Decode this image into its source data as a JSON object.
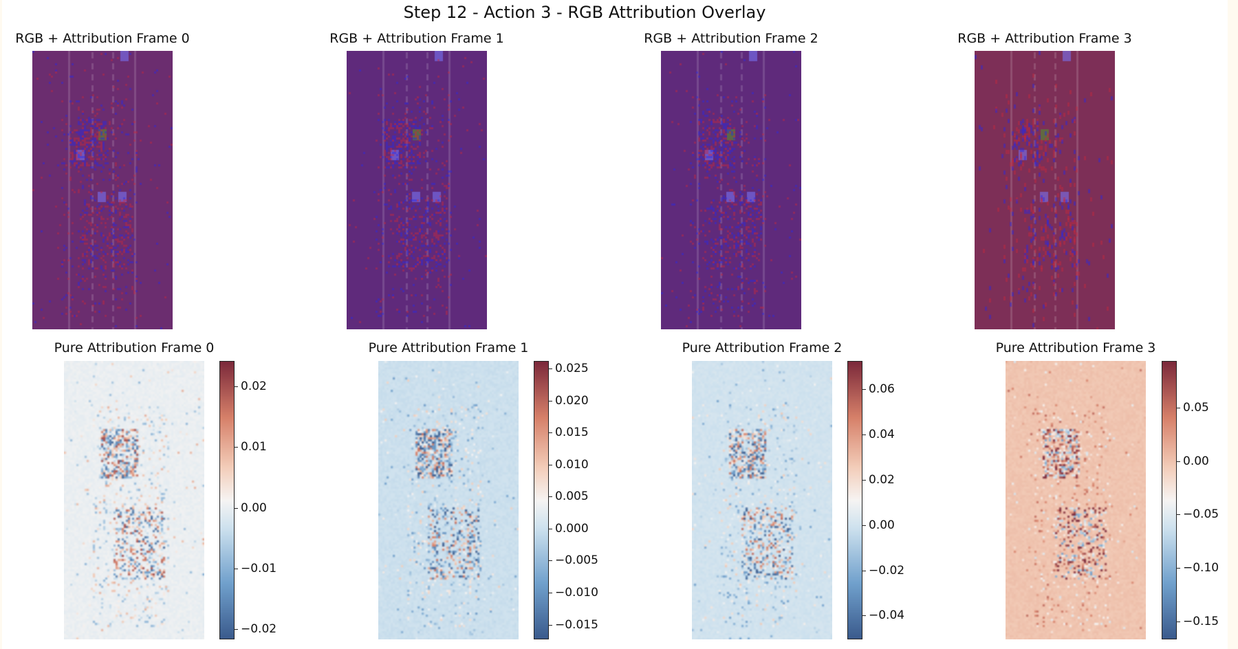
{
  "title": "Step 12 - Action 3 - RGB Attribution Overlay",
  "chart_data": [
    {
      "type": "heatmap",
      "title": "RGB + Attribution Frame 0",
      "overlay_color": "#6b2d6f"
    },
    {
      "type": "heatmap",
      "title": "RGB + Attribution Frame 1",
      "overlay_color": "#5f2a7b"
    },
    {
      "type": "heatmap",
      "title": "RGB + Attribution Frame 2",
      "overlay_color": "#5f2a7b"
    },
    {
      "type": "heatmap",
      "title": "RGB + Attribution Frame 3",
      "overlay_color": "#7d2f57"
    },
    {
      "type": "heatmap",
      "title": "Pure Attribution Frame 0",
      "colormap": "RdBu_r",
      "vmin": -0.0217,
      "vmax": 0.0242,
      "ticks": [
        0.02,
        0.01,
        0.0,
        -0.01,
        -0.02
      ],
      "tick_labels": [
        "0.02",
        "0.01",
        "0.00",
        "−0.01",
        "−0.02"
      ]
    },
    {
      "type": "heatmap",
      "title": "Pure Attribution Frame 1",
      "colormap": "RdBu_r",
      "vmin": -0.0173,
      "vmax": 0.0262,
      "ticks": [
        0.025,
        0.02,
        0.015,
        0.01,
        0.005,
        0.0,
        -0.005,
        -0.01,
        -0.015
      ],
      "tick_labels": [
        "0.025",
        "0.020",
        "0.015",
        "0.010",
        "0.005",
        "0.000",
        "−0.005",
        "−0.010",
        "−0.015"
      ]
    },
    {
      "type": "heatmap",
      "title": "Pure Attribution Frame 2",
      "colormap": "RdBu_r",
      "vmin": -0.0505,
      "vmax": 0.0726,
      "ticks": [
        0.06,
        0.04,
        0.02,
        0.0,
        -0.02,
        -0.04
      ],
      "tick_labels": [
        "0.06",
        "0.04",
        "0.02",
        "0.00",
        "−0.02",
        "−0.04"
      ]
    },
    {
      "type": "heatmap",
      "title": "Pure Attribution Frame 3",
      "colormap": "RdBu_r",
      "vmin": -0.167,
      "vmax": 0.094,
      "ticks": [
        0.05,
        0.0,
        -0.05,
        -0.1,
        -0.15
      ],
      "tick_labels": [
        "0.05",
        "0.00",
        "−0.05",
        "−0.10",
        "−0.15"
      ]
    }
  ]
}
